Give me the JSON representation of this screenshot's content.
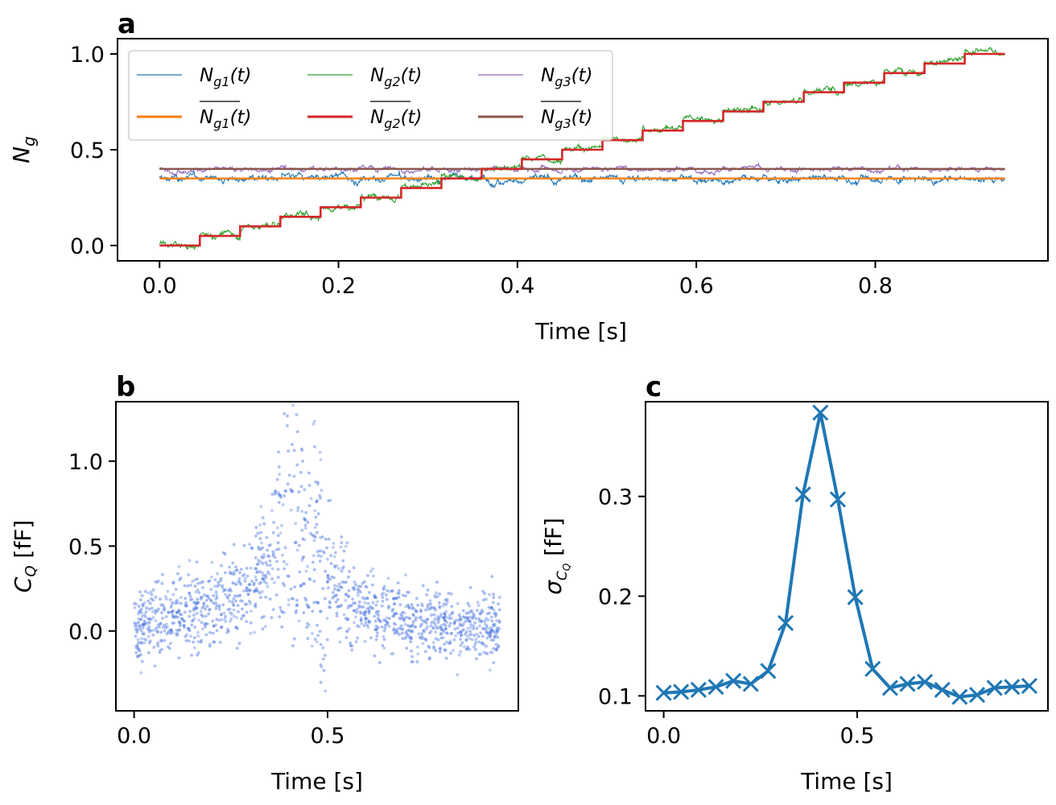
{
  "chart_data": [
    {
      "panel": "a",
      "type": "line",
      "xlabel": "Time [s]",
      "ylabel": "N_g",
      "xlim": [
        -0.047,
        0.993
      ],
      "ylim": [
        -0.08,
        1.08
      ],
      "xticks": [
        "0.0",
        "0.2",
        "0.4",
        "0.6",
        "0.8"
      ],
      "yticks": [
        "0.0",
        "0.5",
        "1.0"
      ],
      "legend_position": "upper-left",
      "legend": [
        "N_g1(t)",
        "N_g2(t)",
        "N_g3(t)",
        "mean N_g1(t)",
        "mean N_g2(t)",
        "mean N_g3(t)"
      ],
      "series": [
        {
          "name": "N_g1(t)",
          "color": "#1f77b4",
          "style": "noisy",
          "mean": 0.35,
          "noise": 0.012
        },
        {
          "name": "mean N_g1(t)",
          "color": "#ff7f0e",
          "style": "constant",
          "value": 0.35
        },
        {
          "name": "N_g3(t)",
          "color": "#9467bd",
          "style": "noisy",
          "mean": 0.4,
          "noise": 0.008
        },
        {
          "name": "mean N_g3(t)",
          "color": "#8c564b",
          "style": "constant",
          "value": 0.4
        },
        {
          "name": "N_g2(t)",
          "color": "#2ca02c",
          "style": "noisy-staircase",
          "noise": 0.01
        },
        {
          "name": "mean N_g2(t)",
          "color": "#d62728",
          "style": "staircase",
          "step_times": [
            0.0,
            0.045,
            0.09,
            0.135,
            0.18,
            0.225,
            0.27,
            0.315,
            0.36,
            0.405,
            0.45,
            0.495,
            0.54,
            0.585,
            0.63,
            0.675,
            0.72,
            0.765,
            0.81,
            0.855,
            0.9,
            0.945
          ],
          "step_values": [
            0.0,
            0.05,
            0.1,
            0.15,
            0.2,
            0.25,
            0.3,
            0.35,
            0.4,
            0.45,
            0.5,
            0.55,
            0.6,
            0.65,
            0.7,
            0.75,
            0.8,
            0.85,
            0.9,
            0.95,
            1.0
          ]
        }
      ]
    },
    {
      "panel": "b",
      "type": "scatter",
      "xlabel": "Time [s]",
      "ylabel": "C_Q [fF]",
      "xlim": [
        -0.047,
        0.993
      ],
      "ylim": [
        -0.47,
        1.35
      ],
      "xticks": [
        "0.0",
        "0.5"
      ],
      "yticks": [
        "0.0",
        "0.5",
        "1.0"
      ],
      "color": "#4169e1",
      "n_points": 5200,
      "envelope": {
        "t": [
          0.0,
          0.1,
          0.2,
          0.3,
          0.35,
          0.38,
          0.42,
          0.46,
          0.5,
          0.55,
          0.6,
          0.7,
          0.8,
          0.945
        ],
        "mean": [
          0.02,
          0.08,
          0.14,
          0.26,
          0.42,
          0.82,
          0.95,
          0.72,
          0.38,
          0.2,
          0.12,
          0.07,
          0.04,
          0.03
        ],
        "sigma": [
          0.1,
          0.11,
          0.12,
          0.13,
          0.17,
          0.28,
          0.38,
          0.3,
          0.2,
          0.13,
          0.11,
          0.11,
          0.1,
          0.1
        ]
      }
    },
    {
      "panel": "c",
      "type": "line",
      "marker": "x",
      "color": "#1f77b4",
      "xlabel": "Time [s]",
      "ylabel": "sigma_CQ [fF]",
      "xlim": [
        -0.047,
        0.993
      ],
      "ylim": [
        0.085,
        0.395
      ],
      "xticks": [
        "0.0",
        "0.5"
      ],
      "yticks": [
        "0.1",
        "0.2",
        "0.3"
      ],
      "x": [
        0.0,
        0.045,
        0.09,
        0.135,
        0.18,
        0.225,
        0.27,
        0.315,
        0.36,
        0.405,
        0.45,
        0.495,
        0.54,
        0.585,
        0.63,
        0.675,
        0.72,
        0.765,
        0.81,
        0.855,
        0.9,
        0.945
      ],
      "y": [
        0.103,
        0.104,
        0.106,
        0.109,
        0.115,
        0.112,
        0.125,
        0.173,
        0.302,
        0.384,
        0.297,
        0.199,
        0.127,
        0.108,
        0.112,
        0.114,
        0.106,
        0.099,
        0.101,
        0.108,
        0.109,
        0.11
      ]
    }
  ]
}
